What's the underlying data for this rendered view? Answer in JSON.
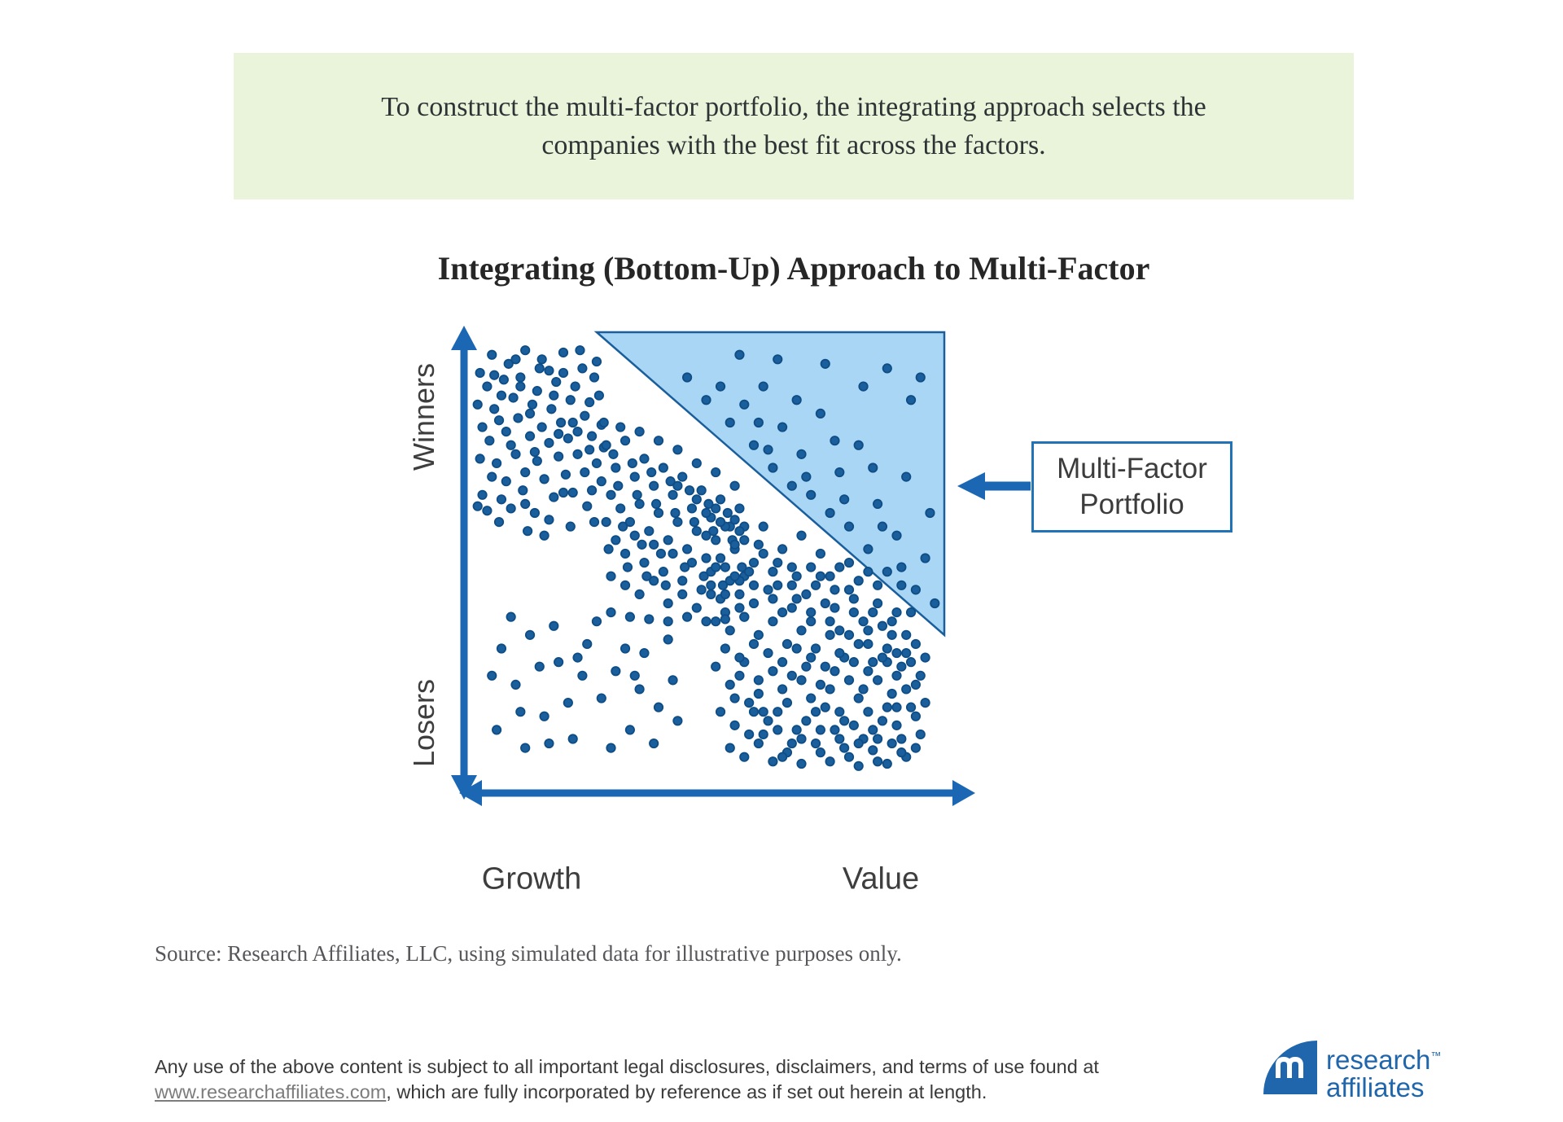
{
  "banner": {
    "line1": "To construct the multi-factor portfolio, the integrating approach selects the",
    "line2": "companies with the best fit across the factors."
  },
  "chart": {
    "title": "Integrating (Bottom-Up) Approach to Multi-Factor",
    "y_axis": {
      "top_label": "Winners",
      "bottom_label": "Losers"
    },
    "x_axis": {
      "left_label": "Growth",
      "right_label": "Value"
    }
  },
  "callout": {
    "line1": "Multi-Factor",
    "line2": "Portfolio"
  },
  "source": {
    "text": "Source: Research Affiliates, LLC, using simulated data for illustrative purposes only."
  },
  "footer": {
    "line1": "Any use of the above content is subject to all important legal disclosures, disclaimers, and terms of use found at",
    "link": "www.researchaffiliates.com",
    "line2_rest": ", which are fully incorporated by reference as if set out herein at length."
  },
  "logo": {
    "monogram": "RA",
    "word1": "research",
    "word2": "affiliates",
    "tm": "™"
  },
  "colors": {
    "banner_bg": "#eaf4db",
    "axis_blue": "#1b67b4",
    "dot_fill": "#1a5f9c",
    "dot_stroke": "#0e4d85",
    "triangle_fill": "#a9d6f5",
    "triangle_stroke": "#1a5f9c",
    "callout_border": "#2272b6",
    "logo_blue": "#1f66ac"
  },
  "chart_data": {
    "type": "scatter",
    "title": "Integrating (Bottom-Up) Approach to Multi-Factor",
    "xlabel_left": "Growth",
    "xlabel_right": "Value",
    "ylabel_top": "Winners",
    "ylabel_bottom": "Losers",
    "x_range": [
      0,
      100
    ],
    "y_range": [
      0,
      100
    ],
    "grid": false,
    "legend": "none",
    "annotation": "Multi-Factor Portfolio (arrow pointing to shaded selection triangle)",
    "selection_region": {
      "label": "Multi-Factor Portfolio",
      "shape": "triangle",
      "vertices": [
        [
          27,
          100
        ],
        [
          100,
          100
        ],
        [
          100,
          33
        ]
      ]
    },
    "points": [
      [
        2.5,
        91
      ],
      [
        5,
        95
      ],
      [
        8.5,
        93
      ],
      [
        12,
        96
      ],
      [
        15.5,
        94
      ],
      [
        20,
        95.5
      ],
      [
        23.5,
        96
      ],
      [
        27,
        93.5
      ],
      [
        4,
        88
      ],
      [
        7.5,
        89.5
      ],
      [
        11,
        90
      ],
      [
        14.5,
        87
      ],
      [
        18.5,
        89
      ],
      [
        22.5,
        88
      ],
      [
        26.5,
        90
      ],
      [
        2,
        84
      ],
      [
        5.5,
        83
      ],
      [
        9.5,
        85.5
      ],
      [
        13.5,
        84
      ],
      [
        17.5,
        83
      ],
      [
        21.5,
        85
      ],
      [
        25.5,
        84.5
      ],
      [
        3,
        79
      ],
      [
        6.5,
        80.5
      ],
      [
        10.5,
        81
      ],
      [
        15.5,
        79
      ],
      [
        19.5,
        80
      ],
      [
        24.5,
        81.5
      ],
      [
        28,
        79.5
      ],
      [
        4.5,
        76
      ],
      [
        9,
        75
      ],
      [
        13,
        77
      ],
      [
        17,
        75.5
      ],
      [
        21,
        76.5
      ],
      [
        26,
        77
      ],
      [
        2.5,
        72
      ],
      [
        6,
        71
      ],
      [
        10,
        73
      ],
      [
        14.5,
        71.5
      ],
      [
        19,
        72.5
      ],
      [
        23,
        73
      ],
      [
        27,
        71
      ],
      [
        5,
        68
      ],
      [
        8,
        67
      ],
      [
        12,
        69
      ],
      [
        16,
        67.5
      ],
      [
        20.5,
        68.5
      ],
      [
        24.5,
        69
      ],
      [
        28,
        67
      ],
      [
        3,
        64
      ],
      [
        7,
        63
      ],
      [
        11.5,
        65
      ],
      [
        18,
        63.5
      ],
      [
        22,
        64.5
      ],
      [
        26,
        65
      ],
      [
        9,
        61
      ],
      [
        14,
        60
      ],
      [
        25,
        61.5
      ],
      [
        6.5,
        58
      ],
      [
        17,
        58.5
      ],
      [
        12.5,
        56
      ],
      [
        21.5,
        57
      ],
      [
        10,
        94
      ],
      [
        20,
        91
      ],
      [
        24,
        92
      ],
      [
        17,
        91.5
      ],
      [
        7,
        86
      ],
      [
        13,
        82
      ],
      [
        25.5,
        74
      ],
      [
        19,
        77.5
      ],
      [
        28.5,
        74.5
      ],
      [
        5.5,
        90.5
      ],
      [
        11,
        88
      ],
      [
        22,
        80
      ],
      [
        15,
        92
      ],
      [
        18,
        86
      ],
      [
        27.5,
        86
      ],
      [
        23,
        78
      ],
      [
        8,
        78
      ],
      [
        14,
        73.5
      ],
      [
        20,
        64.5
      ],
      [
        4,
        60.5
      ],
      [
        16,
        55
      ],
      [
        26.5,
        58
      ],
      [
        12,
        62
      ],
      [
        2,
        61.5
      ],
      [
        29,
        75
      ],
      [
        31,
        70
      ],
      [
        33,
        76
      ],
      [
        35,
        68
      ],
      [
        37,
        72
      ],
      [
        39,
        66
      ],
      [
        41,
        70
      ],
      [
        43,
        64
      ],
      [
        45,
        68
      ],
      [
        47,
        61
      ],
      [
        49,
        65
      ],
      [
        51,
        59
      ],
      [
        53,
        63
      ],
      [
        55,
        57
      ],
      [
        57,
        61
      ],
      [
        30,
        64
      ],
      [
        32,
        61
      ],
      [
        34,
        58
      ],
      [
        36,
        62
      ],
      [
        38,
        56
      ],
      [
        40,
        60
      ],
      [
        42,
        54
      ],
      [
        44,
        58
      ],
      [
        46,
        52
      ],
      [
        48,
        56
      ],
      [
        50,
        50
      ],
      [
        52,
        54
      ],
      [
        54,
        48
      ],
      [
        56,
        52
      ],
      [
        58,
        46
      ],
      [
        29,
        58
      ],
      [
        31,
        54
      ],
      [
        33,
        51
      ],
      [
        35,
        55
      ],
      [
        37,
        49
      ],
      [
        39,
        53
      ],
      [
        41,
        47
      ],
      [
        43,
        51
      ],
      [
        45,
        45
      ],
      [
        47,
        49
      ],
      [
        49,
        43
      ],
      [
        51,
        47
      ],
      [
        53,
        41
      ],
      [
        55,
        45
      ],
      [
        57,
        39
      ],
      [
        30,
        46
      ],
      [
        33,
        44
      ],
      [
        36,
        42
      ],
      [
        39,
        45
      ],
      [
        42,
        40
      ],
      [
        45,
        42
      ],
      [
        48,
        39
      ],
      [
        51,
        42
      ],
      [
        54,
        38
      ],
      [
        57,
        42
      ],
      [
        28.5,
        80
      ],
      [
        32,
        79
      ],
      [
        36,
        78
      ],
      [
        40,
        76
      ],
      [
        44,
        74
      ],
      [
        48,
        71
      ],
      [
        52,
        69
      ],
      [
        56,
        66
      ],
      [
        30,
        38
      ],
      [
        34,
        37
      ],
      [
        38,
        36.5
      ],
      [
        42,
        36
      ],
      [
        46,
        37
      ],
      [
        50,
        36
      ],
      [
        54,
        36.5
      ],
      [
        58,
        37
      ],
      [
        31.5,
        66
      ],
      [
        35.5,
        64
      ],
      [
        39.5,
        62
      ],
      [
        43.5,
        60
      ],
      [
        47.5,
        58
      ],
      [
        51.5,
        56
      ],
      [
        55.5,
        54
      ],
      [
        29.5,
        52
      ],
      [
        33.5,
        48
      ],
      [
        37.5,
        46
      ],
      [
        41.5,
        44
      ],
      [
        45.5,
        48
      ],
      [
        49.5,
        46
      ],
      [
        53.5,
        44
      ],
      [
        57.5,
        48
      ],
      [
        30.5,
        73
      ],
      [
        34.5,
        71
      ],
      [
        38.5,
        69
      ],
      [
        42.5,
        67
      ],
      [
        46.5,
        65
      ],
      [
        50.5,
        62
      ],
      [
        54.5,
        60
      ],
      [
        58,
        57
      ],
      [
        44,
        66
      ],
      [
        48,
        63
      ],
      [
        52,
        61
      ],
      [
        56,
        58.5
      ],
      [
        32.5,
        57
      ],
      [
        36.5,
        53
      ],
      [
        40.5,
        51
      ],
      [
        46,
        90
      ],
      [
        50,
        85
      ],
      [
        53,
        88
      ],
      [
        55,
        80
      ],
      [
        58,
        84
      ],
      [
        60,
        75
      ],
      [
        62,
        88
      ],
      [
        64,
        70
      ],
      [
        66,
        79
      ],
      [
        68,
        66
      ],
      [
        70,
        73
      ],
      [
        72,
        64
      ],
      [
        74,
        82
      ],
      [
        76,
        60
      ],
      [
        78,
        69
      ],
      [
        80,
        57
      ],
      [
        82,
        75
      ],
      [
        84,
        52
      ],
      [
        86,
        62
      ],
      [
        88,
        47
      ],
      [
        90,
        55
      ],
      [
        92,
        68
      ],
      [
        94,
        43
      ],
      [
        96,
        50
      ],
      [
        97,
        60
      ],
      [
        93,
        85
      ],
      [
        88,
        92
      ],
      [
        75,
        93
      ],
      [
        65,
        94
      ],
      [
        57,
        95
      ],
      [
        83,
        88
      ],
      [
        95,
        90
      ],
      [
        98,
        40
      ],
      [
        61,
        80
      ],
      [
        69,
        85
      ],
      [
        77,
        76
      ],
      [
        85,
        70
      ],
      [
        91,
        48
      ],
      [
        87,
        57
      ],
      [
        79,
        63
      ],
      [
        71,
        68
      ],
      [
        63,
        74
      ],
      [
        50,
        55
      ],
      [
        53,
        50
      ],
      [
        56,
        53
      ],
      [
        59,
        47
      ],
      [
        62,
        51
      ],
      [
        65,
        44
      ],
      [
        68,
        48
      ],
      [
        71,
        42
      ],
      [
        74,
        46
      ],
      [
        77,
        39
      ],
      [
        80,
        43
      ],
      [
        83,
        36
      ],
      [
        86,
        40
      ],
      [
        89,
        33
      ],
      [
        51,
        44
      ],
      [
        54,
        42
      ],
      [
        57,
        45
      ],
      [
        60,
        40
      ],
      [
        63,
        43
      ],
      [
        66,
        38
      ],
      [
        69,
        41
      ],
      [
        72,
        36
      ],
      [
        75,
        40
      ],
      [
        78,
        34
      ],
      [
        81,
        38
      ],
      [
        84,
        31
      ],
      [
        87,
        35
      ],
      [
        90,
        29
      ],
      [
        52,
        36
      ],
      [
        55,
        34
      ],
      [
        58,
        37
      ],
      [
        61,
        33
      ],
      [
        64,
        36
      ],
      [
        67,
        31
      ],
      [
        70,
        34
      ],
      [
        73,
        30
      ],
      [
        76,
        33
      ],
      [
        79,
        28
      ],
      [
        82,
        31
      ],
      [
        85,
        27
      ],
      [
        88,
        30
      ],
      [
        91,
        26
      ],
      [
        50,
        60
      ],
      [
        54,
        57
      ],
      [
        58,
        54
      ],
      [
        62,
        57
      ],
      [
        66,
        52
      ],
      [
        70,
        55
      ],
      [
        74,
        51
      ],
      [
        78,
        48
      ],
      [
        82,
        45
      ],
      [
        86,
        44
      ],
      [
        90,
        38
      ],
      [
        92,
        33
      ],
      [
        53,
        58
      ],
      [
        57,
        56
      ],
      [
        61,
        53
      ],
      [
        65,
        49
      ],
      [
        69,
        46
      ],
      [
        73,
        44
      ],
      [
        77,
        43
      ],
      [
        81,
        41
      ],
      [
        85,
        38
      ],
      [
        89,
        36
      ],
      [
        52,
        48
      ],
      [
        56,
        46
      ],
      [
        60,
        44
      ],
      [
        64,
        41
      ],
      [
        68,
        39
      ],
      [
        72,
        38
      ],
      [
        76,
        36
      ],
      [
        80,
        33
      ],
      [
        84,
        34
      ],
      [
        88,
        27
      ],
      [
        92,
        29
      ],
      [
        91,
        44
      ],
      [
        93,
        38
      ],
      [
        94,
        31
      ],
      [
        60,
        49
      ],
      [
        64,
        47
      ],
      [
        68,
        44
      ],
      [
        72,
        48
      ],
      [
        76,
        46
      ],
      [
        80,
        49
      ],
      [
        84,
        47
      ],
      [
        52,
        26
      ],
      [
        55,
        22
      ],
      [
        58,
        27
      ],
      [
        61,
        20
      ],
      [
        64,
        25
      ],
      [
        67,
        18
      ],
      [
        70,
        23
      ],
      [
        73,
        16
      ],
      [
        76,
        21
      ],
      [
        79,
        14
      ],
      [
        82,
        19
      ],
      [
        85,
        12
      ],
      [
        88,
        17
      ],
      [
        91,
        10
      ],
      [
        94,
        15
      ],
      [
        53,
        16
      ],
      [
        56,
        13
      ],
      [
        59,
        18
      ],
      [
        62,
        11
      ],
      [
        65,
        16
      ],
      [
        68,
        9
      ],
      [
        71,
        14
      ],
      [
        74,
        7
      ],
      [
        77,
        12
      ],
      [
        80,
        6
      ],
      [
        83,
        10
      ],
      [
        86,
        5
      ],
      [
        89,
        9
      ],
      [
        92,
        6
      ],
      [
        95,
        11
      ],
      [
        54,
        30
      ],
      [
        57,
        28
      ],
      [
        60,
        31
      ],
      [
        63,
        29
      ],
      [
        66,
        27
      ],
      [
        69,
        30
      ],
      [
        72,
        28
      ],
      [
        75,
        26
      ],
      [
        78,
        29
      ],
      [
        81,
        27
      ],
      [
        84,
        25
      ],
      [
        87,
        28
      ],
      [
        90,
        24
      ],
      [
        93,
        27
      ],
      [
        55,
        8
      ],
      [
        58,
        6
      ],
      [
        61,
        9
      ],
      [
        64,
        5
      ],
      [
        67,
        7
      ],
      [
        70,
        4.5
      ],
      [
        73,
        9
      ],
      [
        76,
        5
      ],
      [
        79,
        8
      ],
      [
        82,
        4
      ],
      [
        85,
        7.5
      ],
      [
        88,
        4.5
      ],
      [
        91,
        7
      ],
      [
        56,
        19
      ],
      [
        60,
        16
      ],
      [
        63,
        14
      ],
      [
        66,
        21
      ],
      [
        69,
        12
      ],
      [
        72,
        19
      ],
      [
        75,
        17
      ],
      [
        78,
        16
      ],
      [
        81,
        13
      ],
      [
        84,
        16
      ],
      [
        87,
        14
      ],
      [
        90,
        13
      ],
      [
        93,
        17
      ],
      [
        94,
        22
      ],
      [
        57,
        24
      ],
      [
        61,
        23
      ],
      [
        65,
        12
      ],
      [
        68,
        24
      ],
      [
        71,
        26
      ],
      [
        74,
        22
      ],
      [
        77,
        25
      ],
      [
        80,
        23
      ],
      [
        83,
        21
      ],
      [
        86,
        23
      ],
      [
        89,
        20
      ],
      [
        92,
        21
      ],
      [
        95,
        24
      ],
      [
        96,
        18
      ],
      [
        96,
        28
      ],
      [
        59,
        11
      ],
      [
        62,
        16
      ],
      [
        66,
        6
      ],
      [
        70,
        10
      ],
      [
        74,
        12
      ],
      [
        78,
        10
      ],
      [
        82,
        9
      ],
      [
        86,
        10
      ],
      [
        90,
        17
      ],
      [
        94,
        8
      ],
      [
        7,
        30
      ],
      [
        10,
        22
      ],
      [
        13,
        33
      ],
      [
        16,
        15
      ],
      [
        19,
        27
      ],
      [
        22,
        10
      ],
      [
        25,
        31
      ],
      [
        28,
        19
      ],
      [
        31,
        25
      ],
      [
        34,
        12
      ],
      [
        37,
        29
      ],
      [
        40,
        17
      ],
      [
        43,
        23
      ],
      [
        6,
        12
      ],
      [
        12,
        8
      ],
      [
        18,
        35
      ],
      [
        24,
        24
      ],
      [
        30,
        8
      ],
      [
        36,
        21
      ],
      [
        42,
        32
      ],
      [
        9,
        37
      ],
      [
        15,
        26
      ],
      [
        21,
        18
      ],
      [
        27,
        36
      ],
      [
        33,
        30
      ],
      [
        39,
        9
      ],
      [
        44,
        14
      ],
      [
        5,
        24
      ],
      [
        11,
        16
      ],
      [
        17,
        9
      ],
      [
        23,
        28
      ],
      [
        35,
        24
      ]
    ]
  }
}
